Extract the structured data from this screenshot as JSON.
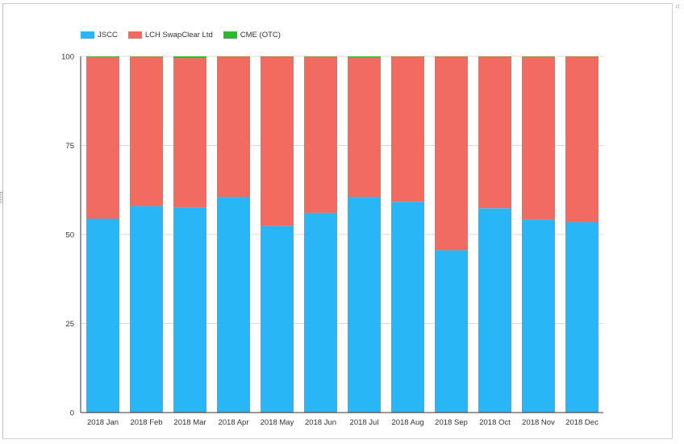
{
  "chart_data": {
    "type": "bar",
    "stacked": true,
    "categories": [
      "2018 Jan",
      "2018 Feb",
      "2018 Mar",
      "2018 Apr",
      "2018 May",
      "2018 Jun",
      "2018 Jul",
      "2018 Aug",
      "2018 Sep",
      "2018 Oct",
      "2018 Nov",
      "2018 Dec"
    ],
    "series": [
      {
        "name": "JSCC",
        "color": "#29b6f6",
        "values": [
          54.3,
          57.9,
          57.5,
          60.4,
          52.3,
          55.9,
          60.4,
          59.1,
          45.5,
          57.3,
          54.1,
          53.4
        ]
      },
      {
        "name": "LCH SwapClear Ltd",
        "color": "#f26b60",
        "values": [
          45.4,
          41.9,
          42.0,
          39.5,
          47.6,
          43.9,
          39.2,
          40.8,
          54.4,
          42.6,
          45.7,
          46.5
        ]
      },
      {
        "name": "CME (OTC)",
        "color": "#2eb82e",
        "values": [
          0.3,
          0.2,
          0.5,
          0.1,
          0.1,
          0.2,
          0.4,
          0.1,
          0.1,
          0.1,
          0.2,
          0.1
        ]
      }
    ],
    "yticks": [
      0,
      25,
      50,
      75,
      100
    ],
    "ylim": [
      0,
      100
    ],
    "grid": true,
    "legend_position": "top-left",
    "title": "",
    "xlabel": "",
    "ylabel": ""
  }
}
